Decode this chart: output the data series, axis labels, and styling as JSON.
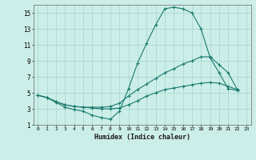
{
  "xlabel": "Humidex (Indice chaleur)",
  "xlim": [
    -0.5,
    23.5
  ],
  "ylim": [
    1,
    16
  ],
  "xticks": [
    0,
    1,
    2,
    3,
    4,
    5,
    6,
    7,
    8,
    9,
    10,
    11,
    12,
    13,
    14,
    15,
    16,
    17,
    18,
    19,
    20,
    21,
    22,
    23
  ],
  "yticks": [
    1,
    3,
    5,
    7,
    9,
    11,
    13,
    15
  ],
  "bg_color": "#cceee8",
  "grid_color": "#aad8d0",
  "line_color": "#1a7a6e",
  "line1_x": [
    0,
    1,
    2,
    3,
    4,
    5,
    6,
    7,
    8,
    9,
    10,
    11,
    12,
    13,
    14,
    15,
    16,
    17,
    18,
    19,
    20,
    21,
    22
  ],
  "line1_y": [
    4.7,
    4.4,
    3.8,
    3.2,
    2.9,
    2.7,
    2.2,
    1.9,
    1.7,
    2.7,
    5.5,
    8.7,
    11.2,
    13.5,
    15.5,
    15.7,
    15.5,
    15.0,
    13.0,
    9.4,
    7.5,
    5.5,
    5.3
  ],
  "line2_x": [
    0,
    1,
    2,
    3,
    4,
    5,
    6,
    7,
    8,
    9,
    10,
    11,
    12,
    13,
    14,
    15,
    16,
    17,
    18,
    19,
    20,
    21,
    22
  ],
  "line2_y": [
    4.7,
    4.4,
    3.9,
    3.5,
    3.3,
    3.2,
    3.2,
    3.2,
    3.3,
    3.7,
    4.6,
    5.4,
    6.1,
    6.8,
    7.5,
    8.0,
    8.6,
    9.0,
    9.5,
    9.5,
    8.5,
    7.5,
    5.4
  ],
  "line3_x": [
    0,
    1,
    2,
    3,
    4,
    5,
    6,
    7,
    8,
    9,
    10,
    11,
    12,
    13,
    14,
    15,
    16,
    17,
    18,
    19,
    20,
    21,
    22
  ],
  "line3_y": [
    4.7,
    4.4,
    3.9,
    3.5,
    3.3,
    3.2,
    3.1,
    3.0,
    3.0,
    3.1,
    3.5,
    4.0,
    4.6,
    5.0,
    5.4,
    5.6,
    5.8,
    6.0,
    6.2,
    6.3,
    6.2,
    5.8,
    5.4
  ]
}
